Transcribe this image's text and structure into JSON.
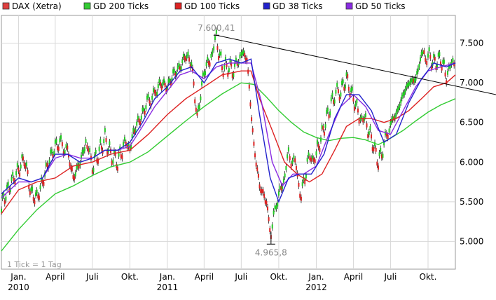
{
  "legend": [
    {
      "label": "DAX (Xetra)",
      "color": "#e04040"
    },
    {
      "label": "GD 200 Ticks",
      "color": "#33cc33"
    },
    {
      "label": "GD 100 Ticks",
      "color": "#dd2222"
    },
    {
      "label": "GD 38 Ticks",
      "color": "#2222cc"
    },
    {
      "label": "GD 50 Ticks",
      "color": "#8a2be2"
    }
  ],
  "footnote": "1 Tick = 1 Tag",
  "annotations": {
    "high_label": "7.600,41",
    "low_label": "4.965,8"
  },
  "chart_data": {
    "type": "line",
    "title": "",
    "xlabel": "",
    "ylabel": "",
    "ylim": [
      4650,
      7850
    ],
    "y_ticks": [
      {
        "value": 5000,
        "label": "5.000"
      },
      {
        "value": 5500,
        "label": "5.500"
      },
      {
        "value": 6000,
        "label": "6.000"
      },
      {
        "value": 6500,
        "label": "6.500"
      },
      {
        "value": 7000,
        "label": "7.000"
      },
      {
        "value": 7500,
        "label": "7.500"
      }
    ],
    "x_ticks": [
      {
        "date": "2010-01",
        "label": "Jan.",
        "year": "2010"
      },
      {
        "date": "2010-04",
        "label": "April",
        "year": ""
      },
      {
        "date": "2010-07",
        "label": "Juli",
        "year": ""
      },
      {
        "date": "2010-10",
        "label": "Okt.",
        "year": ""
      },
      {
        "date": "2011-01",
        "label": "Jan.",
        "year": "2011"
      },
      {
        "date": "2011-04",
        "label": "April",
        "year": ""
      },
      {
        "date": "2011-07",
        "label": "Juli",
        "year": ""
      },
      {
        "date": "2011-10",
        "label": "Okt.",
        "year": ""
      },
      {
        "date": "2012-01",
        "label": "Jan.",
        "year": "2012"
      },
      {
        "date": "2012-04",
        "label": "April",
        "year": ""
      },
      {
        "date": "2012-07",
        "label": "Juli",
        "year": ""
      },
      {
        "date": "2012-10",
        "label": "Okt.",
        "year": ""
      }
    ],
    "x_range": [
      "2009-11-20",
      "2012-12-07"
    ],
    "grid": true,
    "legend_position": "top",
    "series": [
      {
        "name": "DAX (Xetra)",
        "color": "#e04040",
        "style": "candles",
        "points": [
          [
            "2009-11-20",
            5450
          ],
          [
            "2009-12-01",
            5600
          ],
          [
            "2009-12-15",
            5750
          ],
          [
            "2010-01-01",
            5900
          ],
          [
            "2010-01-15",
            6050
          ],
          [
            "2010-02-01",
            5600
          ],
          [
            "2010-02-15",
            5550
          ],
          [
            "2010-03-01",
            5750
          ],
          [
            "2010-03-15",
            6000
          ],
          [
            "2010-04-01",
            6200
          ],
          [
            "2010-04-15",
            6250
          ],
          [
            "2010-05-01",
            6150
          ],
          [
            "2010-05-15",
            5800
          ],
          [
            "2010-06-01",
            6000
          ],
          [
            "2010-06-15",
            6250
          ],
          [
            "2010-07-01",
            5950
          ],
          [
            "2010-07-15",
            6100
          ],
          [
            "2010-08-01",
            6300
          ],
          [
            "2010-08-15",
            6100
          ],
          [
            "2010-09-01",
            6000
          ],
          [
            "2010-09-15",
            6200
          ],
          [
            "2010-10-01",
            6200
          ],
          [
            "2010-10-15",
            6450
          ],
          [
            "2010-11-01",
            6600
          ],
          [
            "2010-11-15",
            6800
          ],
          [
            "2010-12-01",
            6850
          ],
          [
            "2010-12-15",
            7000
          ],
          [
            "2011-01-01",
            6950
          ],
          [
            "2011-01-15",
            7100
          ],
          [
            "2011-02-01",
            7200
          ],
          [
            "2011-02-15",
            7350
          ],
          [
            "2011-03-01",
            7250
          ],
          [
            "2011-03-15",
            6550
          ],
          [
            "2011-04-01",
            7150
          ],
          [
            "2011-04-15",
            7300
          ],
          [
            "2011-05-01",
            7550
          ],
          [
            "2011-05-15",
            7200
          ],
          [
            "2011-06-01",
            7200
          ],
          [
            "2011-06-15",
            7150
          ],
          [
            "2011-07-01",
            7400
          ],
          [
            "2011-07-15",
            7300
          ],
          [
            "2011-08-01",
            6200
          ],
          [
            "2011-08-15",
            5700
          ],
          [
            "2011-09-01",
            5500
          ],
          [
            "2011-09-12",
            5050
          ],
          [
            "2011-09-25",
            5500
          ],
          [
            "2011-10-10",
            5700
          ],
          [
            "2011-10-25",
            6100
          ],
          [
            "2011-11-10",
            6000
          ],
          [
            "2011-11-25",
            5550
          ],
          [
            "2011-12-10",
            6000
          ],
          [
            "2012-01-01",
            6100
          ],
          [
            "2012-01-15",
            6350
          ],
          [
            "2012-02-01",
            6650
          ],
          [
            "2012-02-15",
            6850
          ],
          [
            "2012-03-01",
            6900
          ],
          [
            "2012-03-15",
            7050
          ],
          [
            "2012-04-01",
            6800
          ],
          [
            "2012-04-15",
            6600
          ],
          [
            "2012-05-01",
            6500
          ],
          [
            "2012-05-15",
            6300
          ],
          [
            "2012-06-01",
            6000
          ],
          [
            "2012-06-15",
            6200
          ],
          [
            "2012-07-01",
            6500
          ],
          [
            "2012-07-15",
            6600
          ],
          [
            "2012-08-01",
            6850
          ],
          [
            "2012-08-15",
            7000
          ],
          [
            "2012-09-01",
            7050
          ],
          [
            "2012-09-15",
            7350
          ],
          [
            "2012-10-01",
            7350
          ],
          [
            "2012-10-15",
            7250
          ],
          [
            "2012-11-01",
            7300
          ],
          [
            "2012-11-15",
            7100
          ],
          [
            "2012-12-07",
            7300
          ]
        ]
      },
      {
        "name": "GD 200 Ticks",
        "color": "#33cc33",
        "style": "line",
        "points": [
          [
            "2009-11-20",
            4880
          ],
          [
            "2010-01-01",
            5150
          ],
          [
            "2010-02-15",
            5400
          ],
          [
            "2010-04-01",
            5600
          ],
          [
            "2010-05-15",
            5700
          ],
          [
            "2010-07-01",
            5830
          ],
          [
            "2010-08-15",
            5940
          ],
          [
            "2010-10-01",
            6000
          ],
          [
            "2010-11-15",
            6130
          ],
          [
            "2011-01-01",
            6330
          ],
          [
            "2011-02-15",
            6520
          ],
          [
            "2011-04-01",
            6700
          ],
          [
            "2011-05-15",
            6860
          ],
          [
            "2011-07-01",
            7000
          ],
          [
            "2011-08-01",
            6980
          ],
          [
            "2011-09-01",
            6820
          ],
          [
            "2011-10-01",
            6650
          ],
          [
            "2011-11-01",
            6500
          ],
          [
            "2011-12-01",
            6380
          ],
          [
            "2012-01-01",
            6310
          ],
          [
            "2012-02-01",
            6270
          ],
          [
            "2012-03-01",
            6300
          ],
          [
            "2012-04-01",
            6310
          ],
          [
            "2012-05-01",
            6280
          ],
          [
            "2012-06-01",
            6220
          ],
          [
            "2012-07-01",
            6300
          ],
          [
            "2012-08-01",
            6400
          ],
          [
            "2012-09-01",
            6520
          ],
          [
            "2012-10-01",
            6630
          ],
          [
            "2012-11-01",
            6720
          ],
          [
            "2012-12-07",
            6800
          ]
        ]
      },
      {
        "name": "GD 100 Ticks",
        "color": "#dd2222",
        "style": "line",
        "points": [
          [
            "2009-11-20",
            5350
          ],
          [
            "2010-01-01",
            5650
          ],
          [
            "2010-02-15",
            5750
          ],
          [
            "2010-04-01",
            5800
          ],
          [
            "2010-05-15",
            5950
          ],
          [
            "2010-07-01",
            6000
          ],
          [
            "2010-08-15",
            6100
          ],
          [
            "2010-10-01",
            6150
          ],
          [
            "2010-11-15",
            6350
          ],
          [
            "2011-01-01",
            6600
          ],
          [
            "2011-02-15",
            6800
          ],
          [
            "2011-04-01",
            6950
          ],
          [
            "2011-05-15",
            7100
          ],
          [
            "2011-07-01",
            7150
          ],
          [
            "2011-07-25",
            7150
          ],
          [
            "2011-08-15",
            6800
          ],
          [
            "2011-09-15",
            6400
          ],
          [
            "2011-10-15",
            6000
          ],
          [
            "2011-11-15",
            5850
          ],
          [
            "2011-12-15",
            5750
          ],
          [
            "2012-01-15",
            5850
          ],
          [
            "2012-02-15",
            6150
          ],
          [
            "2012-03-15",
            6450
          ],
          [
            "2012-04-15",
            6550
          ],
          [
            "2012-05-15",
            6550
          ],
          [
            "2012-06-15",
            6500
          ],
          [
            "2012-07-15",
            6550
          ],
          [
            "2012-08-15",
            6650
          ],
          [
            "2012-09-15",
            6800
          ],
          [
            "2012-10-15",
            6950
          ],
          [
            "2012-11-15",
            7000
          ],
          [
            "2012-12-07",
            7100
          ]
        ]
      },
      {
        "name": "GD 38 Ticks",
        "color": "#2222cc",
        "style": "line",
        "points": [
          [
            "2009-11-20",
            5600
          ],
          [
            "2010-01-01",
            5800
          ],
          [
            "2010-02-01",
            5750
          ],
          [
            "2010-03-01",
            5800
          ],
          [
            "2010-04-01",
            6100
          ],
          [
            "2010-05-01",
            6100
          ],
          [
            "2010-06-01",
            6000
          ],
          [
            "2010-07-01",
            6050
          ],
          [
            "2010-08-01",
            6150
          ],
          [
            "2010-09-01",
            6150
          ],
          [
            "2010-10-01",
            6250
          ],
          [
            "2010-11-01",
            6500
          ],
          [
            "2010-12-01",
            6800
          ],
          [
            "2011-01-01",
            6950
          ],
          [
            "2011-02-01",
            7150
          ],
          [
            "2011-03-01",
            7200
          ],
          [
            "2011-04-01",
            7000
          ],
          [
            "2011-05-01",
            7250
          ],
          [
            "2011-06-01",
            7300
          ],
          [
            "2011-07-01",
            7250
          ],
          [
            "2011-07-25",
            7300
          ],
          [
            "2011-08-15",
            6600
          ],
          [
            "2011-09-10",
            5800
          ],
          [
            "2011-10-01",
            5500
          ],
          [
            "2011-10-25",
            5800
          ],
          [
            "2011-11-20",
            5850
          ],
          [
            "2011-12-20",
            5850
          ],
          [
            "2012-01-20",
            6100
          ],
          [
            "2012-02-15",
            6550
          ],
          [
            "2012-03-15",
            6850
          ],
          [
            "2012-04-15",
            6850
          ],
          [
            "2012-05-15",
            6650
          ],
          [
            "2012-06-15",
            6250
          ],
          [
            "2012-07-15",
            6350
          ],
          [
            "2012-08-15",
            6750
          ],
          [
            "2012-09-15",
            7050
          ],
          [
            "2012-10-15",
            7250
          ],
          [
            "2012-11-15",
            7200
          ],
          [
            "2012-12-07",
            7250
          ]
        ]
      },
      {
        "name": "GD 50 Ticks",
        "color": "#8a2be2",
        "style": "line",
        "points": [
          [
            "2009-11-20",
            5550
          ],
          [
            "2010-01-01",
            5750
          ],
          [
            "2010-02-01",
            5750
          ],
          [
            "2010-03-01",
            5800
          ],
          [
            "2010-04-01",
            6050
          ],
          [
            "2010-05-01",
            6100
          ],
          [
            "2010-06-01",
            6050
          ],
          [
            "2010-07-01",
            6050
          ],
          [
            "2010-08-01",
            6150
          ],
          [
            "2010-09-01",
            6150
          ],
          [
            "2010-10-01",
            6200
          ],
          [
            "2010-11-01",
            6450
          ],
          [
            "2010-12-01",
            6700
          ],
          [
            "2011-01-01",
            6900
          ],
          [
            "2011-02-01",
            7100
          ],
          [
            "2011-03-01",
            7150
          ],
          [
            "2011-04-01",
            7050
          ],
          [
            "2011-05-01",
            7200
          ],
          [
            "2011-06-01",
            7250
          ],
          [
            "2011-07-01",
            7250
          ],
          [
            "2011-07-25",
            7250
          ],
          [
            "2011-08-20",
            6750
          ],
          [
            "2011-09-15",
            6000
          ],
          [
            "2011-10-10",
            5700
          ],
          [
            "2011-11-05",
            5850
          ],
          [
            "2011-12-01",
            5850
          ],
          [
            "2012-01-01",
            5950
          ],
          [
            "2012-02-01",
            6350
          ],
          [
            "2012-03-01",
            6700
          ],
          [
            "2012-04-01",
            6850
          ],
          [
            "2012-05-01",
            6700
          ],
          [
            "2012-06-01",
            6400
          ],
          [
            "2012-07-01",
            6350
          ],
          [
            "2012-08-01",
            6650
          ],
          [
            "2012-09-01",
            6950
          ],
          [
            "2012-10-01",
            7150
          ],
          [
            "2012-11-01",
            7200
          ],
          [
            "2012-12-07",
            7250
          ]
        ]
      }
    ],
    "trendline": {
      "from": [
        "2011-05-01",
        7600.41
      ],
      "to": [
        "2012-12-07",
        6960
      ]
    },
    "marked_high": {
      "date": "2011-05-01",
      "value": 7600.41
    },
    "marked_low": {
      "date": "2011-09-12",
      "value": 4965.8
    }
  }
}
